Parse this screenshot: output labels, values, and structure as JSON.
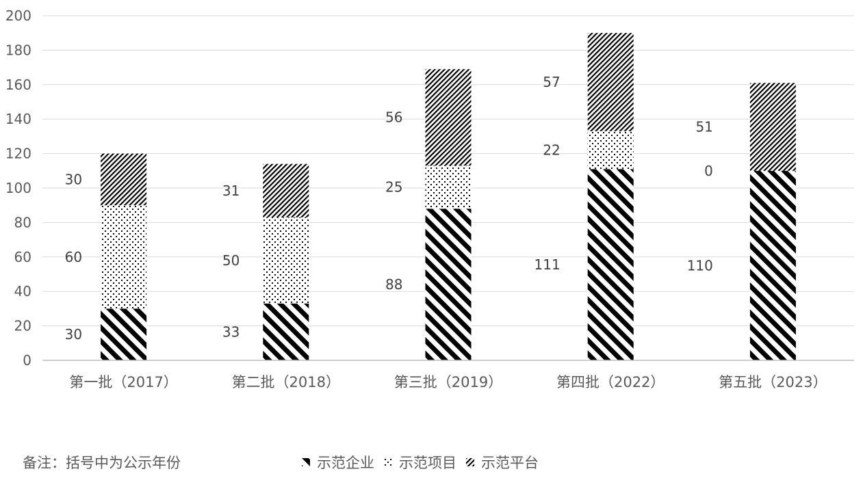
{
  "chart_data": {
    "type": "bar",
    "stacked": true,
    "categories": [
      "第一批（2017）",
      "第二批（2018）",
      "第三批（2019）",
      "第四批（2022）",
      "第五批（2023）"
    ],
    "series": [
      {
        "name": "示范企业",
        "pattern": "wide-diagonal",
        "values": [
          30,
          33,
          88,
          111,
          110
        ]
      },
      {
        "name": "示范项目",
        "pattern": "dots",
        "values": [
          60,
          50,
          25,
          22,
          0
        ]
      },
      {
        "name": "示范平台",
        "pattern": "fine-diagonal",
        "values": [
          30,
          31,
          56,
          57,
          51
        ]
      }
    ],
    "y_ticks": [
      "0",
      "20",
      "40",
      "60",
      "80",
      "100",
      "120",
      "140",
      "160",
      "180",
      "200"
    ],
    "ylim": [
      0,
      200
    ],
    "grid": true,
    "legend_position": "bottom",
    "note": "备注：括号中为公示年份",
    "colors": {
      "ink": "#000000",
      "grid": "#d9d9d9",
      "text": "#595959"
    }
  }
}
